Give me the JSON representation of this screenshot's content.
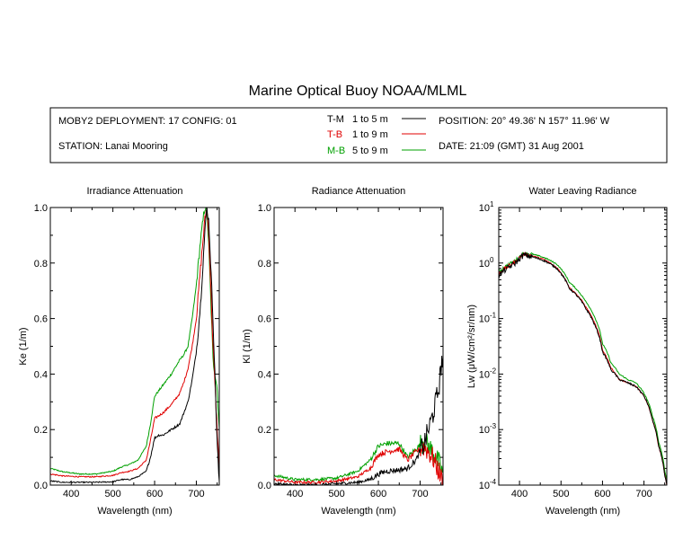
{
  "title": "Marine Optical Buoy NOAA/MLML",
  "info": {
    "deployment": "MOBY2 DEPLOYMENT: 17 CONFIG: 01",
    "station": "STATION: Lanai Mooring",
    "position": "POSITION: 20° 49.36' N   157° 11.96' W",
    "date": "DATE: 21:09 (GMT) 31 Aug 2001"
  },
  "legend": [
    {
      "code": "T-M",
      "range": "1 to 5  m",
      "color": "#000000"
    },
    {
      "code": "T-B",
      "range": "1 to 9  m",
      "color": "#e00000"
    },
    {
      "code": "M-B",
      "range": "5 to 9  m",
      "color": "#00a000"
    }
  ],
  "chart_data": [
    {
      "type": "line",
      "title": "Irradiance Attenuation",
      "xlabel": "Wavelength (nm)",
      "ylabel": "Ke  (1/m)",
      "xlim": [
        350,
        755
      ],
      "ylim": [
        0,
        1.0
      ],
      "xticks": [
        400,
        500,
        600,
        700
      ],
      "yticks": [
        0.0,
        0.2,
        0.4,
        0.6,
        0.8,
        1.0
      ],
      "ytick_labels": [
        "0.0",
        "0.2",
        "0.4",
        "0.6",
        "0.8",
        "1.0"
      ],
      "series": [
        {
          "name": "T-M",
          "color": "#000000",
          "noise": 0.004,
          "x": [
            350,
            380,
            420,
            460,
            500,
            520,
            540,
            560,
            580,
            590,
            600,
            610,
            620,
            640,
            660,
            670,
            680,
            690,
            700,
            710,
            720,
            725,
            730,
            740,
            750,
            755
          ],
          "y": [
            0.015,
            0.01,
            0.01,
            0.01,
            0.012,
            0.02,
            0.02,
            0.03,
            0.05,
            0.1,
            0.17,
            0.18,
            0.18,
            0.2,
            0.22,
            0.26,
            0.3,
            0.38,
            0.48,
            0.65,
            0.9,
            1.0,
            0.95,
            0.6,
            0.15,
            0.0
          ]
        },
        {
          "name": "T-B",
          "color": "#e00000",
          "noise": 0.004,
          "x": [
            350,
            380,
            420,
            460,
            500,
            520,
            540,
            560,
            580,
            590,
            600,
            610,
            620,
            640,
            660,
            670,
            680,
            690,
            700,
            710,
            720,
            725,
            730,
            740,
            750,
            755
          ],
          "y": [
            0.04,
            0.033,
            0.03,
            0.03,
            0.035,
            0.045,
            0.05,
            0.06,
            0.09,
            0.16,
            0.24,
            0.25,
            0.26,
            0.29,
            0.33,
            0.37,
            0.42,
            0.5,
            0.6,
            0.78,
            0.95,
            1.0,
            0.9,
            0.5,
            0.2,
            0.05
          ]
        },
        {
          "name": "M-B",
          "color": "#00a000",
          "noise": 0.004,
          "x": [
            350,
            380,
            420,
            460,
            500,
            520,
            540,
            560,
            580,
            590,
            600,
            610,
            620,
            640,
            660,
            670,
            680,
            690,
            700,
            710,
            720,
            725,
            730,
            740,
            750,
            755
          ],
          "y": [
            0.06,
            0.048,
            0.04,
            0.04,
            0.05,
            0.065,
            0.075,
            0.09,
            0.14,
            0.22,
            0.32,
            0.34,
            0.36,
            0.4,
            0.45,
            0.47,
            0.5,
            0.6,
            0.72,
            0.88,
            1.0,
            1.0,
            0.85,
            0.45,
            0.35,
            0.2
          ]
        }
      ]
    },
    {
      "type": "line",
      "title": "Radiance Attenuation",
      "xlabel": "Wavelength (nm)",
      "ylabel": "Kl  (1/m)",
      "xlim": [
        350,
        755
      ],
      "ylim": [
        0,
        1.0
      ],
      "xticks": [
        400,
        500,
        600,
        700
      ],
      "yticks": [
        0.0,
        0.2,
        0.4,
        0.6,
        0.8,
        1.0
      ],
      "ytick_labels": [
        "0.0",
        "0.2",
        "0.4",
        "0.6",
        "0.8",
        "1.0"
      ],
      "series": [
        {
          "name": "T-M",
          "color": "#000000",
          "noise": 0.01,
          "x": [
            350,
            400,
            450,
            500,
            550,
            580,
            600,
            620,
            650,
            670,
            690,
            710,
            730,
            745,
            752
          ],
          "y": [
            0.005,
            0.0,
            0.0,
            0.005,
            0.01,
            0.02,
            0.04,
            0.05,
            0.055,
            0.06,
            0.09,
            0.15,
            0.25,
            0.35,
            0.45
          ]
        },
        {
          "name": "T-B",
          "color": "#e00000",
          "noise": 0.01,
          "x": [
            350,
            400,
            450,
            500,
            550,
            580,
            600,
            620,
            650,
            670,
            690,
            710,
            730,
            745,
            752
          ],
          "y": [
            0.02,
            0.01,
            0.01,
            0.015,
            0.03,
            0.06,
            0.11,
            0.12,
            0.13,
            0.09,
            0.12,
            0.14,
            0.1,
            0.05,
            0.02
          ]
        },
        {
          "name": "M-B",
          "color": "#00a000",
          "noise": 0.01,
          "x": [
            350,
            400,
            450,
            500,
            550,
            580,
            600,
            620,
            650,
            670,
            690,
            710,
            730,
            745,
            752
          ],
          "y": [
            0.035,
            0.02,
            0.02,
            0.025,
            0.05,
            0.09,
            0.14,
            0.15,
            0.15,
            0.1,
            0.13,
            0.16,
            0.12,
            0.08,
            0.05
          ]
        }
      ]
    },
    {
      "type": "line",
      "title": "Water Leaving Radiance",
      "xlabel": "Wavelength (nm)",
      "ylabel": "Lw  (μW/cm²/sr/nm)",
      "scale": "log",
      "xlim": [
        350,
        755
      ],
      "ylim": [
        0.0001,
        10
      ],
      "xticks": [
        400,
        500,
        600,
        700
      ],
      "yticks": [
        0.0001,
        0.001,
        0.01,
        0.1,
        1,
        10
      ],
      "ytick_labels": [
        {
          "base": "10",
          "exp": "-4"
        },
        {
          "base": "10",
          "exp": "-3"
        },
        {
          "base": "10",
          "exp": "-2"
        },
        {
          "base": "10",
          "exp": "-1"
        },
        {
          "base": "10",
          "exp": "0"
        },
        {
          "base": "10",
          "exp": "1"
        }
      ],
      "series": [
        {
          "name": "T-M",
          "color": "#000000",
          "noise": 0.08,
          "x": [
            350,
            370,
            390,
            410,
            430,
            460,
            490,
            520,
            540,
            560,
            580,
            600,
            620,
            640,
            660,
            680,
            700,
            720,
            735,
            750,
            755
          ],
          "y": [
            0.6,
            0.8,
            1.0,
            1.4,
            1.3,
            1.1,
            0.8,
            0.35,
            0.25,
            0.15,
            0.08,
            0.025,
            0.012,
            0.008,
            0.007,
            0.006,
            0.004,
            0.0015,
            0.0005,
            0.00015,
            0.0001
          ]
        },
        {
          "name": "T-B",
          "color": "#e00000",
          "noise": 0.05,
          "x": [
            350,
            370,
            390,
            410,
            430,
            460,
            490,
            520,
            540,
            560,
            580,
            600,
            620,
            640,
            660,
            680,
            700,
            720,
            735,
            750,
            755
          ],
          "y": [
            0.65,
            0.85,
            1.05,
            1.45,
            1.35,
            1.15,
            0.82,
            0.36,
            0.26,
            0.16,
            0.085,
            0.027,
            0.013,
            0.008,
            0.007,
            0.006,
            0.004,
            0.0015,
            0.0005,
            0.00015,
            0.0001
          ]
        },
        {
          "name": "M-B",
          "color": "#00a000",
          "noise": 0.05,
          "x": [
            350,
            370,
            390,
            410,
            430,
            460,
            490,
            520,
            540,
            560,
            580,
            600,
            620,
            640,
            660,
            680,
            700,
            720,
            735,
            750,
            755
          ],
          "y": [
            0.7,
            0.9,
            1.1,
            1.5,
            1.45,
            1.25,
            0.95,
            0.45,
            0.32,
            0.2,
            0.11,
            0.035,
            0.016,
            0.01,
            0.008,
            0.007,
            0.0045,
            0.0018,
            0.0006,
            0.00018,
            0.00012
          ]
        }
      ]
    }
  ]
}
